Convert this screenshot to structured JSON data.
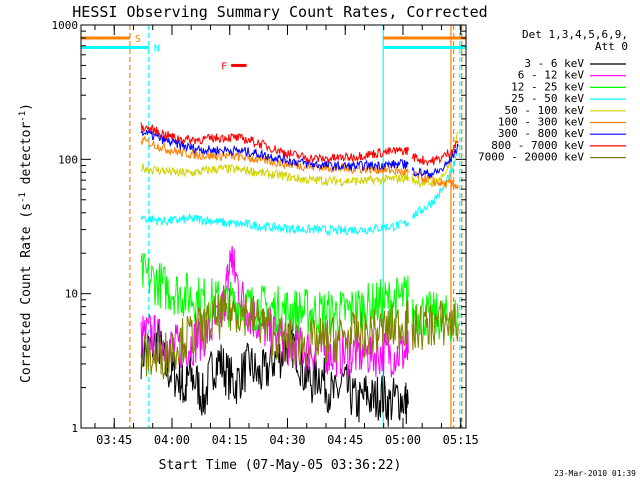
{
  "chart_data": {
    "type": "line",
    "title": "HESSI Observing Summary Count Rates, Corrected",
    "xlabel": "Start Time (07-May-05 03:36:22)",
    "ylabel": "Corrected Count Rate (s",
    "ylabel_sup1": "-1",
    "ylabel_mid": " detector",
    "ylabel_sup2": "-1",
    "ylabel_end": ")",
    "y_scale": "log",
    "ylim": [
      1,
      1000
    ],
    "y_ticks": [
      1,
      10,
      100,
      1000
    ],
    "y_tick_labels": [
      "1",
      "10",
      "100",
      "1000"
    ],
    "x_unit": "minutes since 03:36:22",
    "xlim": [
      0,
      100
    ],
    "x_ticks": [
      8.63,
      23.63,
      38.63,
      53.63,
      68.63,
      83.63,
      98.63
    ],
    "x_tick_labels": [
      "03:45",
      "04:00",
      "04:15",
      "04:30",
      "04:45",
      "05:00",
      "05:15"
    ],
    "grid": false,
    "legend_placement": "right",
    "legend_header": [
      "Det 1,3,4,5,6,9,",
      "Att 0"
    ],
    "series": [
      {
        "name": "3 - 6 keV",
        "color": "#000000",
        "segments": [
          {
            "x": [
              15.6,
              18,
              20,
              22,
              24,
              26,
              27,
              28,
              30,
              32,
              34,
              36,
              38,
              40,
              42,
              44,
              46,
              48,
              50,
              52,
              54,
              56,
              58,
              60,
              62,
              64,
              66,
              68,
              70,
              72,
              74,
              76,
              78,
              80,
              82,
              84,
              85
            ],
            "y": [
              3.5,
              4,
              4.5,
              2.8,
              2.5,
              2.3,
              1.8,
              2.5,
              2.2,
              1.6,
              2.8,
              3.2,
              2.5,
              2.1,
              2.6,
              3.0,
              2.4,
              2.6,
              3.2,
              3.5,
              4.5,
              3.8,
              2.5,
              2.2,
              2.6,
              2.0,
              1.7,
              2.2,
              1.8,
              1.5,
              1.8,
              1.6,
              1.8,
              1.5,
              1.7,
              1.6,
              1.5
            ]
          }
        ]
      },
      {
        "name": "6 - 12 keV",
        "color": "#ff00ff",
        "segments": [
          {
            "x": [
              15.6,
              18,
              20,
              22,
              24,
              26,
              28,
              30,
              32,
              34,
              36,
              37,
              38,
              39,
              40,
              42,
              44,
              46,
              48,
              50,
              52,
              54,
              56,
              58,
              60,
              62,
              64,
              66,
              68,
              70,
              72,
              74,
              76,
              78,
              80,
              82,
              84,
              85
            ],
            "y": [
              4.8,
              5.0,
              4.5,
              4.2,
              4.0,
              4.0,
              4.2,
              4.5,
              5.0,
              5.6,
              6.5,
              8.5,
              12,
              20,
              14,
              9,
              7,
              6.2,
              5.5,
              5.0,
              4.5,
              4.2,
              4.0,
              3.8,
              3.8,
              3.8,
              3.7,
              3.6,
              3.6,
              3.6,
              3.6,
              3.6,
              3.6,
              3.6,
              3.6,
              3.6,
              3.6,
              3.6
            ]
          }
        ]
      },
      {
        "name": "12 - 25 keV",
        "color": "#00ff00",
        "segments": [
          {
            "x": [
              15.6,
              18,
              20,
              22,
              24,
              26,
              28,
              30,
              32,
              34,
              36,
              38,
              40,
              42,
              44,
              46,
              48,
              50,
              52,
              54,
              56,
              58,
              60,
              62,
              64,
              66,
              68,
              70,
              72,
              74,
              76,
              78,
              80,
              82,
              84,
              85
            ],
            "y": [
              14,
              13,
              12,
              11,
              10.5,
              10,
              9.6,
              9.2,
              9.0,
              8.8,
              8.6,
              8.5,
              8.3,
              8.2,
              8.0,
              7.9,
              7.8,
              7.7,
              7.6,
              7.5,
              7.4,
              7.4,
              7.3,
              7.3,
              7.2,
              7.2,
              7.2,
              7.5,
              7.8,
              8.0,
              8.2,
              8.6,
              8.8,
              9.0,
              9.3,
              9.5
            ]
          },
          {
            "x": [
              86,
              88,
              90,
              92,
              94,
              96,
              98
            ],
            "y": [
              7.5,
              7.2,
              7.0,
              6.8,
              6.6,
              6.5,
              6.6
            ]
          }
        ]
      },
      {
        "name": "25 - 50 keV",
        "color": "#00ffff",
        "segments": [
          {
            "x": [
              15.6,
              18,
              20,
              22,
              24,
              26,
              28,
              30,
              32,
              34,
              36,
              38,
              40,
              42,
              44,
              46,
              48,
              50,
              52,
              54,
              56,
              58,
              60,
              62,
              64,
              66,
              68,
              70,
              72,
              74,
              76,
              78,
              80,
              82,
              84,
              85
            ],
            "y": [
              37,
              36,
              35,
              34.5,
              35,
              35.5,
              36,
              36,
              35.5,
              35,
              34,
              33.5,
              33,
              33,
              32.5,
              32,
              31.5,
              31,
              31,
              30.5,
              30.5,
              30,
              30,
              30,
              29.5,
              29.5,
              29.5,
              30,
              30,
              30,
              30.5,
              31,
              31.5,
              32,
              33,
              34
            ]
          },
          {
            "x": [
              86,
              88,
              90,
              92,
              94,
              96,
              98
            ],
            "y": [
              38,
              41,
              45,
              51,
              60,
              78,
              110
            ]
          }
        ]
      },
      {
        "name": "50 - 100 keV",
        "color": "#d2d200",
        "segments": [
          {
            "x": [
              15.6,
              18,
              20,
              22,
              24,
              26,
              28,
              30,
              32,
              34,
              36,
              38,
              40,
              42,
              44,
              46,
              48,
              50,
              52,
              54,
              56,
              58,
              60,
              62,
              64,
              66,
              68,
              70,
              72,
              74,
              76,
              78,
              80,
              82,
              84,
              85
            ],
            "y": [
              87,
              85,
              83,
              82,
              80,
              79,
              79,
              80,
              82,
              84,
              85,
              85,
              84,
              83,
              82,
              80,
              78,
              77,
              76,
              74,
              72,
              71,
              70,
              70,
              69,
              69,
              69,
              69,
              69,
              69,
              70,
              70,
              71,
              72,
              73,
              74
            ]
          },
          {
            "x": [
              86,
              88,
              90,
              92,
              94,
              96,
              98
            ],
            "y": [
              70,
              68,
              66,
              68,
              75,
              95,
              160
            ]
          }
        ]
      },
      {
        "name": "100 - 300 keV",
        "color": "#ff8000",
        "segments": [
          {
            "x": [
              15.6,
              18,
              20,
              22,
              24,
              26,
              28,
              30,
              32,
              34,
              36,
              38,
              40,
              42,
              44,
              46,
              48,
              50,
              52,
              54,
              56,
              58,
              60,
              62,
              64,
              66,
              68,
              70,
              72,
              74,
              76,
              78,
              80,
              82,
              84,
              85
            ],
            "y": [
              138,
              132,
              126,
              120,
              116,
              112,
              110,
              108,
              107,
              106,
              106,
              106,
              105,
              104,
              102,
              100,
              98,
              96,
              94,
              92,
              90,
              89,
              88,
              88,
              87,
              86,
              86,
              85,
              85,
              85,
              84,
              84,
              83,
              82,
              80,
              79
            ]
          },
          {
            "x": [
              86,
              88,
              90,
              92,
              94,
              96,
              98
            ],
            "y": [
              77,
              74,
              71,
              68,
              66,
              65,
              64
            ]
          }
        ]
      },
      {
        "name": "300 - 800 keV",
        "color": "#0000ff",
        "segments": [
          {
            "x": [
              15.6,
              18,
              20,
              22,
              24,
              26,
              28,
              30,
              32,
              34,
              36,
              38,
              40,
              42,
              44,
              46,
              48,
              50,
              52,
              54,
              56,
              58,
              60,
              62,
              64,
              66,
              68,
              70,
              72,
              74,
              76,
              78,
              80,
              82,
              84,
              85
            ],
            "y": [
              160,
              152,
              145,
              138,
              132,
              127,
              123,
              120,
              118,
              117,
              117,
              117,
              116,
              115,
              113,
              110,
              107,
              104,
              101,
              98,
              96,
              94,
              92,
              91,
              90,
              89,
              89,
              89,
              89,
              90,
              90,
              91,
              91,
              92,
              92,
              92
            ]
          },
          {
            "x": [
              86,
              88,
              90,
              92,
              94,
              96,
              98
            ],
            "y": [
              82,
              80,
              78,
              79,
              85,
              100,
              125
            ]
          }
        ]
      },
      {
        "name": "800 - 7000 keV",
        "color": "#ff0000",
        "segments": [
          {
            "x": [
              15.6,
              18,
              20,
              22,
              24,
              26,
              28,
              30,
              32,
              34,
              36,
              38,
              40,
              42,
              44,
              46,
              48,
              50,
              52,
              54,
              56,
              58,
              60,
              62,
              64,
              66,
              68,
              70,
              72,
              74,
              76,
              78,
              80,
              82,
              84,
              85
            ],
            "y": [
              175,
              168,
              160,
              152,
              146,
              142,
              140,
              140,
              141,
              143,
              145,
              146,
              145,
              142,
              138,
              132,
              126,
              120,
              115,
              110,
              107,
              104,
              102,
              101,
              101,
              102,
              103,
              104,
              106,
              108,
              110,
              112,
              114,
              115,
              116,
              116
            ]
          },
          {
            "x": [
              86,
              88,
              90,
              92,
              94,
              96,
              98
            ],
            "y": [
              106,
              100,
              97,
              98,
              104,
              115,
              135
            ]
          }
        ]
      },
      {
        "name": "7000 - 20000 keV",
        "color": "#808000",
        "segments": [
          {
            "x": [
              15.6,
              18,
              20,
              22,
              24,
              26,
              28,
              30,
              32,
              34,
              36,
              38,
              40,
              42,
              44,
              46,
              48,
              50,
              52,
              54,
              56,
              58,
              60,
              62,
              64,
              66,
              68,
              70,
              72,
              74,
              76,
              78,
              80,
              82,
              84,
              85
            ],
            "y": [
              3.5,
              3.4,
              3.2,
              3.6,
              4.0,
              4.4,
              4.8,
              5.2,
              5.6,
              6.2,
              6.8,
              7.3,
              7.6,
              7.5,
              7.0,
              6.3,
              5.6,
              5.0,
              4.6,
              4.3,
              4.2,
              4.2,
              4.3,
              4.4,
              4.5,
              4.6,
              4.7,
              4.8,
              4.9,
              5.0,
              5.1,
              5.3,
              5.5,
              5.7,
              5.9,
              6.0
            ]
          },
          {
            "x": [
              86,
              88,
              90,
              92,
              94,
              96,
              98
            ],
            "y": [
              5.4,
              5.6,
              5.8,
              6.0,
              6.0,
              6.0,
              6.0
            ]
          }
        ]
      }
    ],
    "flags": [
      {
        "label": "S",
        "color": "#ff8000",
        "x_start": 0,
        "x_end": 12.7,
        "y": 800
      },
      {
        "label": "N",
        "color": "#00ffff",
        "x_start": 0,
        "x_end": 17.6,
        "y": 680
      },
      {
        "label": "",
        "color": "#ff8000",
        "x_start": 78.5,
        "x_end": 100,
        "y": 800
      },
      {
        "label": "",
        "color": "#00ffff",
        "x_start": 78.5,
        "x_end": 100,
        "y": 680
      },
      {
        "label": "F",
        "color": "#ff0000",
        "x_start": 39,
        "x_end": 43,
        "y": 500
      }
    ],
    "vertical_lines": [
      {
        "x": 12.7,
        "color": "#ff8000",
        "style": "dashed"
      },
      {
        "x": 17.6,
        "color": "#00ffff",
        "style": "dashed"
      },
      {
        "x": 78.5,
        "color": "#00ffff",
        "style": "solid"
      },
      {
        "x": 96.1,
        "color": "#ff8000",
        "style": "solid"
      },
      {
        "x": 96.8,
        "color": "#ff8000",
        "style": "dashed"
      },
      {
        "x": 98.4,
        "color": "#00ffff",
        "style": "dashed"
      },
      {
        "x": 98.9,
        "color": "#ff8000",
        "style": "dashed"
      }
    ],
    "timestamp": "23-Mar-2010 01:39"
  }
}
